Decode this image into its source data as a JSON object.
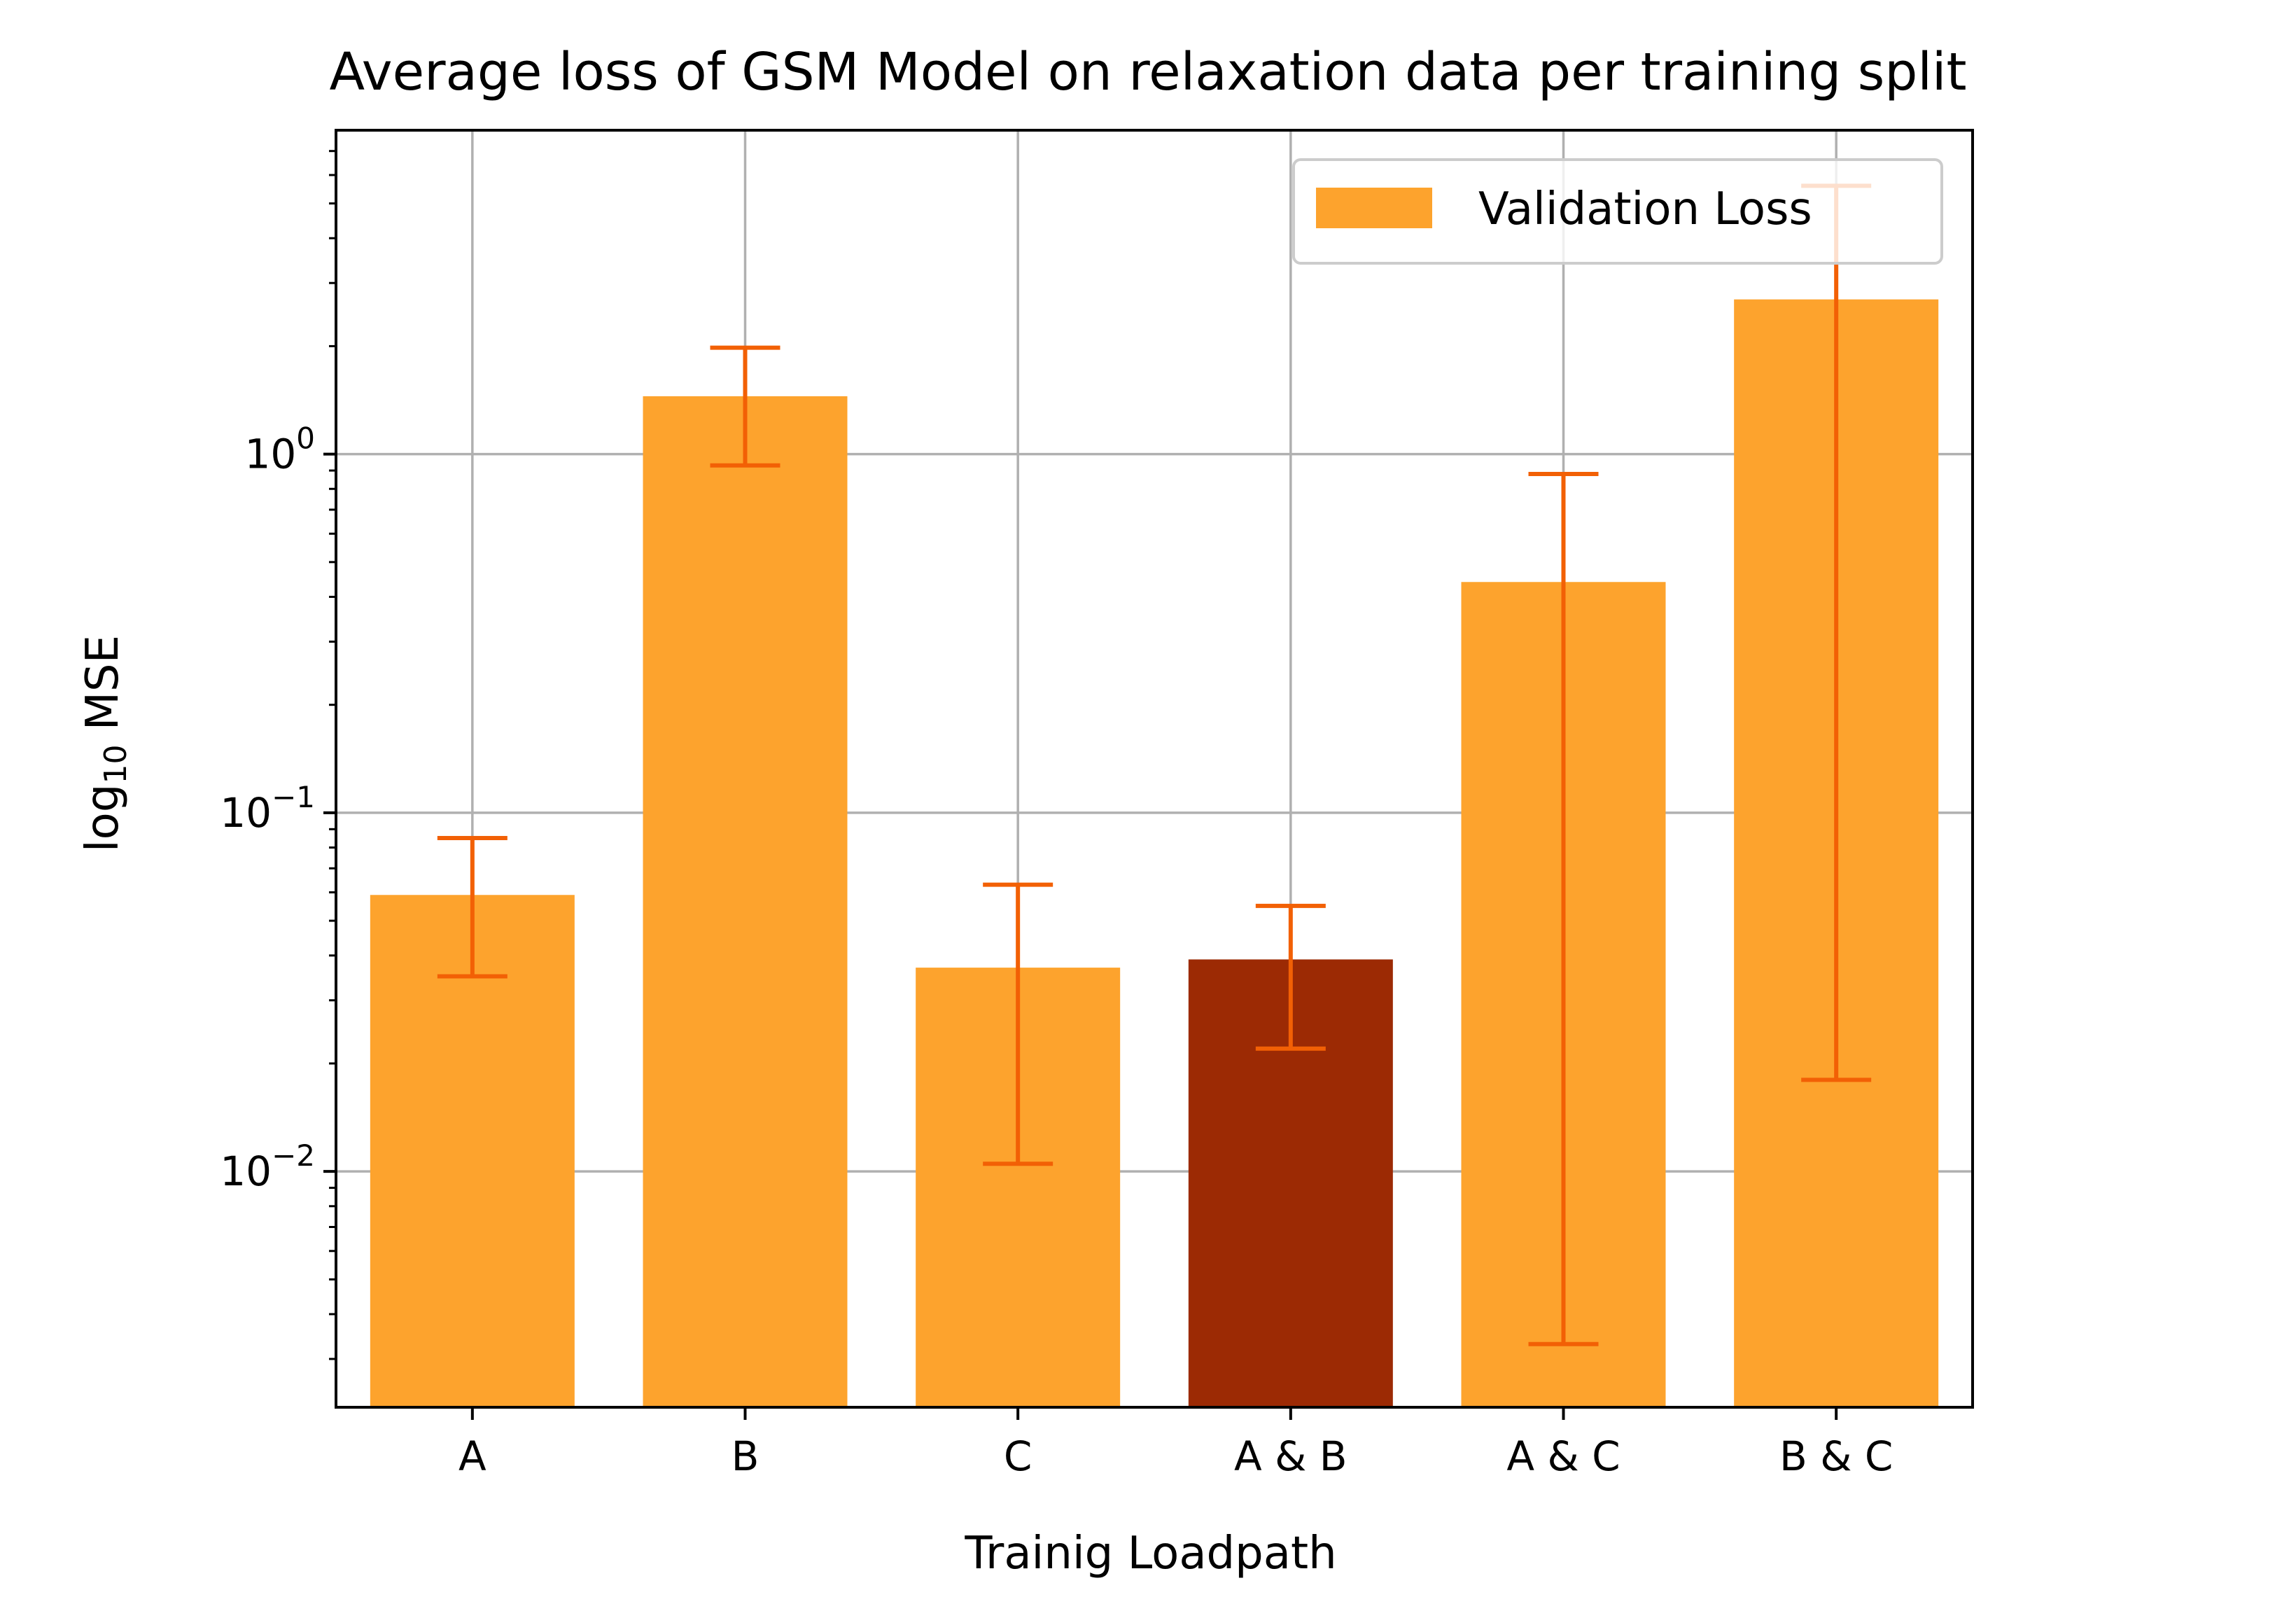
{
  "chart_data": {
    "type": "bar",
    "title": "Average loss of GSM Model on relaxation data per training split",
    "xlabel": "Trainig Loadpath",
    "ylabel_base": "log",
    "ylabel_sub": "10",
    "ylabel_rest": " MSE",
    "yscale": "log",
    "ylim": [
      0.0022,
      8.0
    ],
    "grid": true,
    "legend": {
      "position": "top-right",
      "entries": [
        "Validation Loss"
      ]
    },
    "categories": [
      "A",
      "B",
      "C",
      "A & B",
      "A & C",
      "B & C"
    ],
    "series": [
      {
        "name": "Validation Loss",
        "values": [
          0.059,
          1.45,
          0.037,
          0.039,
          0.44,
          2.7
        ],
        "error_low": [
          0.035,
          0.93,
          0.0105,
          0.022,
          0.0033,
          0.018
        ],
        "error_high": [
          0.085,
          1.98,
          0.063,
          0.055,
          0.88,
          5.6
        ],
        "highlight_index": 3
      }
    ],
    "yticks": [
      {
        "value": 0.01,
        "base": "10",
        "exp": "−2"
      },
      {
        "value": 0.1,
        "base": "10",
        "exp": "−1"
      },
      {
        "value": 1,
        "base": "10",
        "exp": "0"
      }
    ],
    "colors": {
      "bar": "#fda32d",
      "highlight": "#9c2a04",
      "error": "#f26005",
      "grid": "#b0b0b0"
    }
  }
}
